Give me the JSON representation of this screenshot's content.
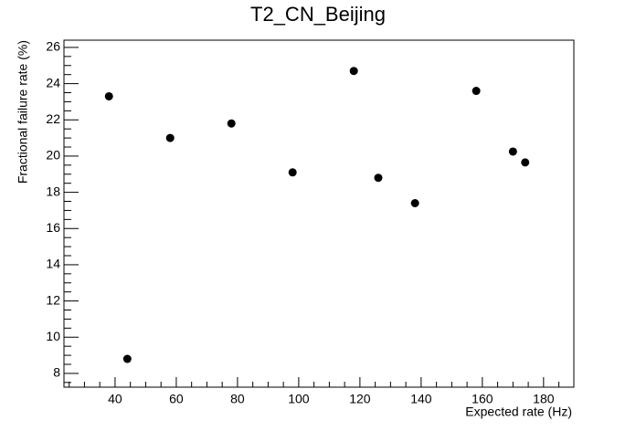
{
  "chart_data": {
    "type": "scatter",
    "title": "T2_CN_Beijing",
    "x_label": "Expected rate (Hz)",
    "y_label": "Fractional failure rate (%)",
    "x": [
      38,
      44,
      58,
      78,
      98,
      118,
      126,
      138,
      158,
      170,
      174
    ],
    "values": [
      23.3,
      8.8,
      21.0,
      21.8,
      19.1,
      24.7,
      18.8,
      17.4,
      23.6,
      20.25,
      19.65
    ],
    "color": "#000000",
    "xlim": [
      23.3,
      189.9
    ],
    "xticks": [
      40,
      60,
      80,
      100,
      120,
      140,
      160,
      180
    ],
    "ylim": [
      7.24,
      26.4
    ],
    "yticks": [
      8,
      10,
      12,
      14,
      16,
      18,
      20,
      22,
      24,
      26
    ]
  }
}
